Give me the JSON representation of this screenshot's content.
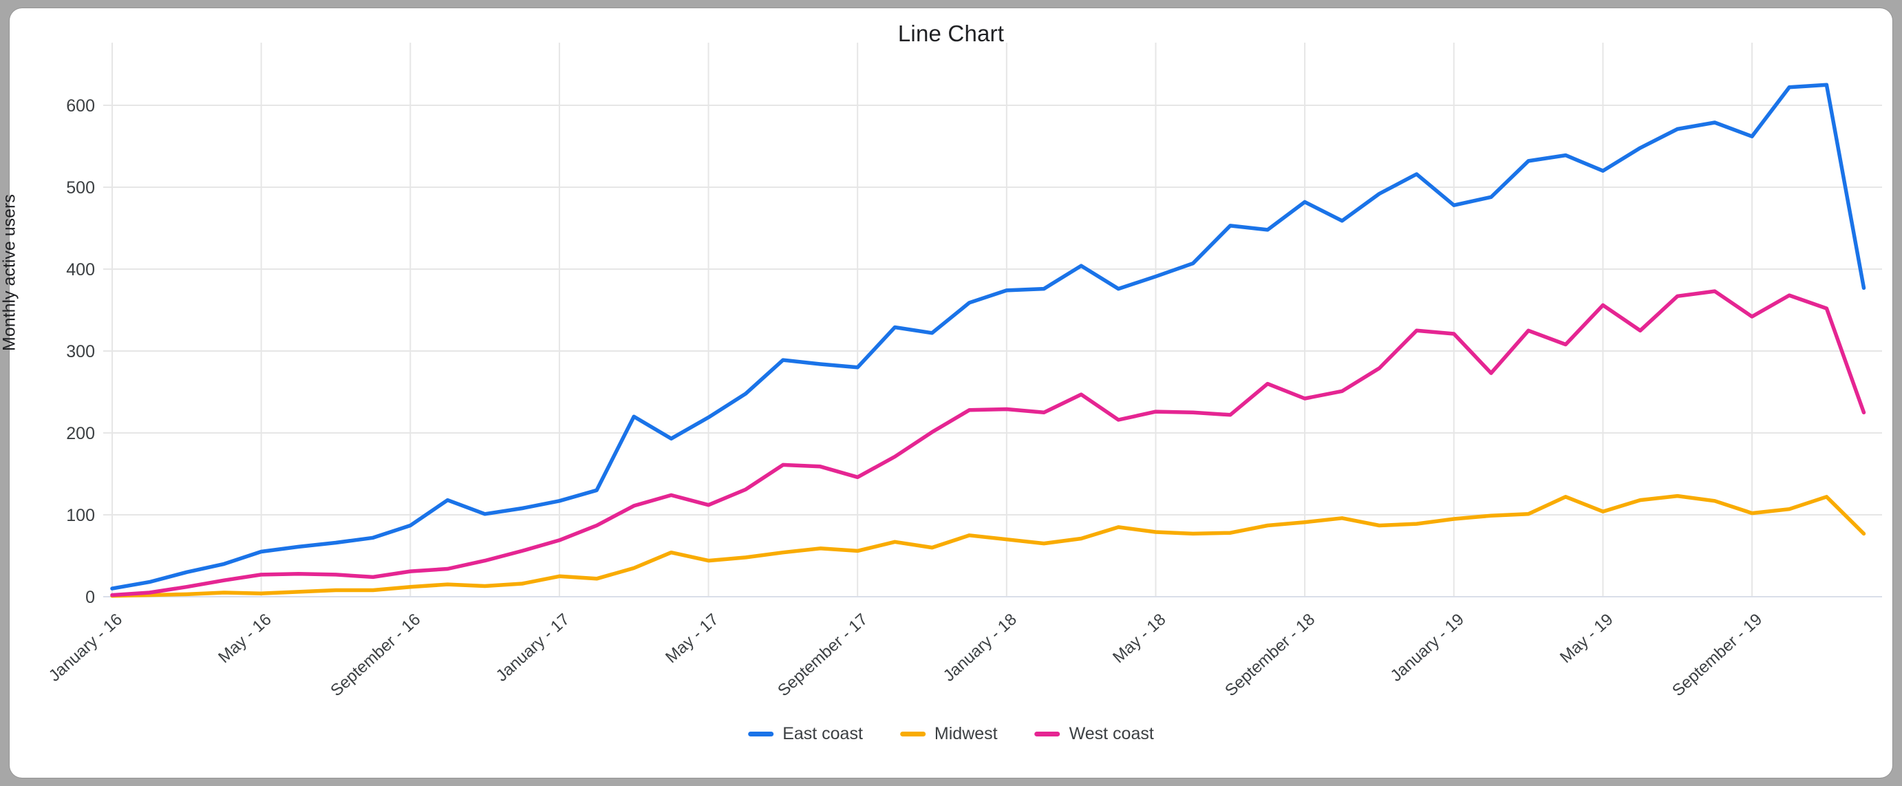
{
  "window": {
    "outer_background": "#a7a7a7",
    "card_background": "#ffffff"
  },
  "chart_data": {
    "type": "line",
    "title": "Line Chart",
    "ylabel": "Monthly active users",
    "xlabel": "",
    "ylim": [
      0,
      600
    ],
    "yticks": [
      0,
      100,
      200,
      300,
      400,
      500,
      600
    ],
    "grid": true,
    "legend_position": "bottom",
    "points_per_series": 48,
    "x_tick_labels": [
      "January - 16",
      "May - 16",
      "September - 16",
      "January - 17",
      "May - 17",
      "September - 17",
      "January - 18",
      "May - 18",
      "September - 18",
      "January - 19",
      "May - 19",
      "September - 19"
    ],
    "x_tick_indices": [
      0,
      4,
      8,
      12,
      16,
      20,
      24,
      28,
      32,
      36,
      40,
      44
    ],
    "series": [
      {
        "name": "East coast",
        "color": "#1a73e8",
        "values": [
          10,
          18,
          30,
          40,
          55,
          61,
          66,
          72,
          87,
          118,
          101,
          108,
          117,
          130,
          220,
          193,
          219,
          248,
          289,
          284,
          280,
          329,
          322,
          359,
          374,
          376,
          404,
          376,
          391,
          407,
          453,
          448,
          482,
          459,
          492,
          516,
          478,
          488,
          532,
          539,
          520,
          548,
          571,
          579,
          562,
          622,
          625,
          377
        ]
      },
      {
        "name": "Midwest",
        "color": "#f9ab00",
        "values": [
          1,
          2,
          3,
          5,
          4,
          6,
          8,
          8,
          12,
          15,
          13,
          16,
          25,
          22,
          35,
          54,
          44,
          48,
          54,
          59,
          56,
          67,
          60,
          75,
          70,
          65,
          71,
          85,
          79,
          77,
          78,
          87,
          91,
          96,
          87,
          89,
          95,
          99,
          101,
          122,
          104,
          118,
          123,
          117,
          102,
          107,
          122,
          77
        ]
      },
      {
        "name": "West coast",
        "color": "#e52592",
        "values": [
          2,
          5,
          12,
          20,
          27,
          28,
          27,
          24,
          31,
          34,
          44,
          56,
          69,
          87,
          111,
          124,
          112,
          131,
          161,
          159,
          146,
          171,
          201,
          228,
          229,
          225,
          247,
          216,
          226,
          225,
          222,
          260,
          242,
          251,
          279,
          325,
          321,
          273,
          325,
          308,
          356,
          325,
          367,
          373,
          342,
          368,
          352,
          225
        ]
      }
    ]
  },
  "colors": {
    "gridline": "#e6e6e6",
    "baseline": "#d9dee9",
    "tick_label": "#3c4043",
    "axis_title": "#202124",
    "title": "#202124",
    "legend_text": "#3c4043"
  }
}
